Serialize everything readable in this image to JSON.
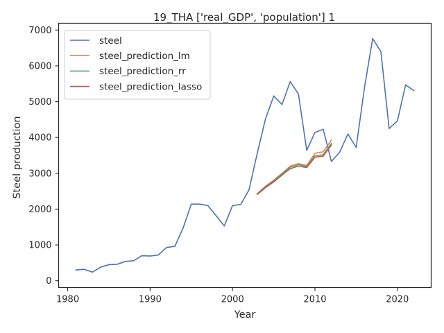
{
  "chart_data": {
    "type": "line",
    "title": "19_THA ['real_GDP', 'population'] 1",
    "xlabel": "Year",
    "ylabel": "Steel production",
    "xlim": [
      1978.9,
      2024.1
    ],
    "ylim": [
      -190,
      7190
    ],
    "x_ticks": [
      1980,
      1990,
      2000,
      2010,
      2020
    ],
    "y_ticks": [
      0,
      1000,
      2000,
      3000,
      4000,
      5000,
      6000,
      7000
    ],
    "grid": false,
    "legend_position": "top-left",
    "series": [
      {
        "name": "steel",
        "color": "#4c72b0",
        "x": [
          1981,
          1982,
          1983,
          1984,
          1985,
          1986,
          1987,
          1988,
          1989,
          1990,
          1991,
          1992,
          1993,
          1994,
          1995,
          1996,
          1997,
          1998,
          1999,
          2000,
          2001,
          2002,
          2003,
          2004,
          2005,
          2006,
          2007,
          2008,
          2009,
          2010,
          2011,
          2012,
          2013,
          2014,
          2015,
          2016,
          2017,
          2018,
          2019,
          2020,
          2021,
          2022
        ],
        "y": [
          300,
          320,
          240,
          380,
          450,
          460,
          540,
          560,
          700,
          690,
          720,
          930,
          960,
          1470,
          2140,
          2140,
          2100,
          1820,
          1530,
          2100,
          2130,
          2540,
          3560,
          4520,
          5160,
          4920,
          5560,
          5210,
          3640,
          4140,
          4230,
          3330,
          3590,
          4100,
          3720,
          5380,
          6760,
          6400,
          4250,
          4460,
          5470,
          5310
        ]
      },
      {
        "name": "steel_prediction_lm",
        "color": "#dd8452",
        "x": [
          2003,
          2004,
          2005,
          2006,
          2007,
          2008,
          2009,
          2010,
          2011,
          2012
        ],
        "y": [
          2430,
          2640,
          2810,
          3000,
          3200,
          3270,
          3220,
          3560,
          3600,
          3930
        ]
      },
      {
        "name": "steel_prediction_rr",
        "color": "#55a868",
        "x": [
          2003,
          2004,
          2005,
          2006,
          2007,
          2008,
          2009,
          2010,
          2011,
          2012
        ],
        "y": [
          2420,
          2620,
          2790,
          2980,
          3170,
          3240,
          3190,
          3490,
          3520,
          3840
        ]
      },
      {
        "name": "steel_prediction_lasso",
        "color": "#c44e52",
        "x": [
          2003,
          2004,
          2005,
          2006,
          2007,
          2008,
          2009,
          2010,
          2011,
          2012
        ],
        "y": [
          2410,
          2600,
          2760,
          2950,
          3130,
          3200,
          3160,
          3450,
          3480,
          3790
        ]
      }
    ]
  }
}
